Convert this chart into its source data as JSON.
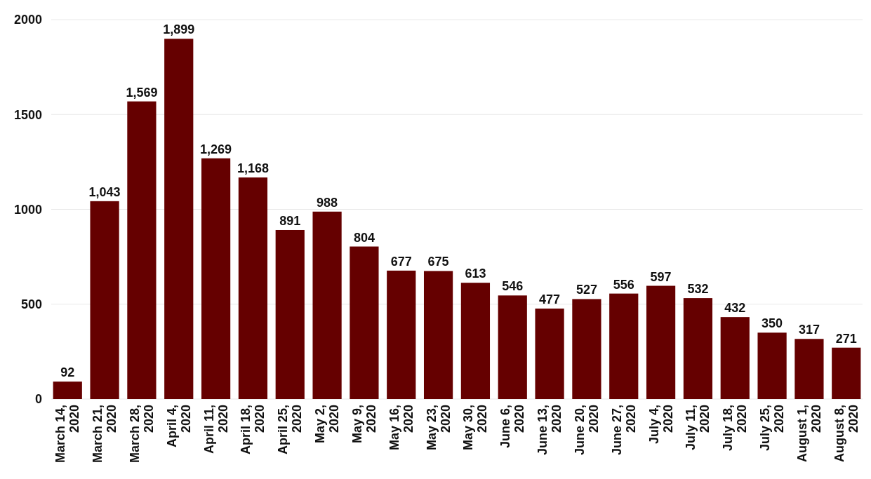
{
  "chart_data": {
    "type": "bar",
    "categories": [
      "March 14, 2020",
      "March 21, 2020",
      "March 28, 2020",
      "April 4, 2020",
      "April 11, 2020",
      "April 18, 2020",
      "April 25, 2020",
      "May 2, 2020",
      "May 9, 2020",
      "May 16, 2020",
      "May 23, 2020",
      "May 30, 2020",
      "June 6, 2020",
      "June 13, 2020",
      "June 20, 2020",
      "June 27, 2020",
      "July 4, 2020",
      "July 11, 2020",
      "July 18, 2020",
      "July 25, 2020",
      "August 1, 2020",
      "August 8, 2020"
    ],
    "values": [
      92,
      1043,
      1569,
      1899,
      1269,
      1168,
      891,
      988,
      804,
      677,
      675,
      613,
      546,
      477,
      527,
      556,
      597,
      532,
      432,
      350,
      317,
      271
    ],
    "value_labels": [
      "92",
      "1,043",
      "1,569",
      "1,899",
      "1,269",
      "1,168",
      "891",
      "988",
      "804",
      "677",
      "675",
      "613",
      "546",
      "477",
      "527",
      "556",
      "597",
      "532",
      "432",
      "350",
      "317",
      "271"
    ],
    "color": "#650000",
    "ylim": [
      0,
      2000
    ],
    "yticks": [
      0,
      500,
      1000,
      1500,
      2000
    ],
    "grid": "y"
  }
}
